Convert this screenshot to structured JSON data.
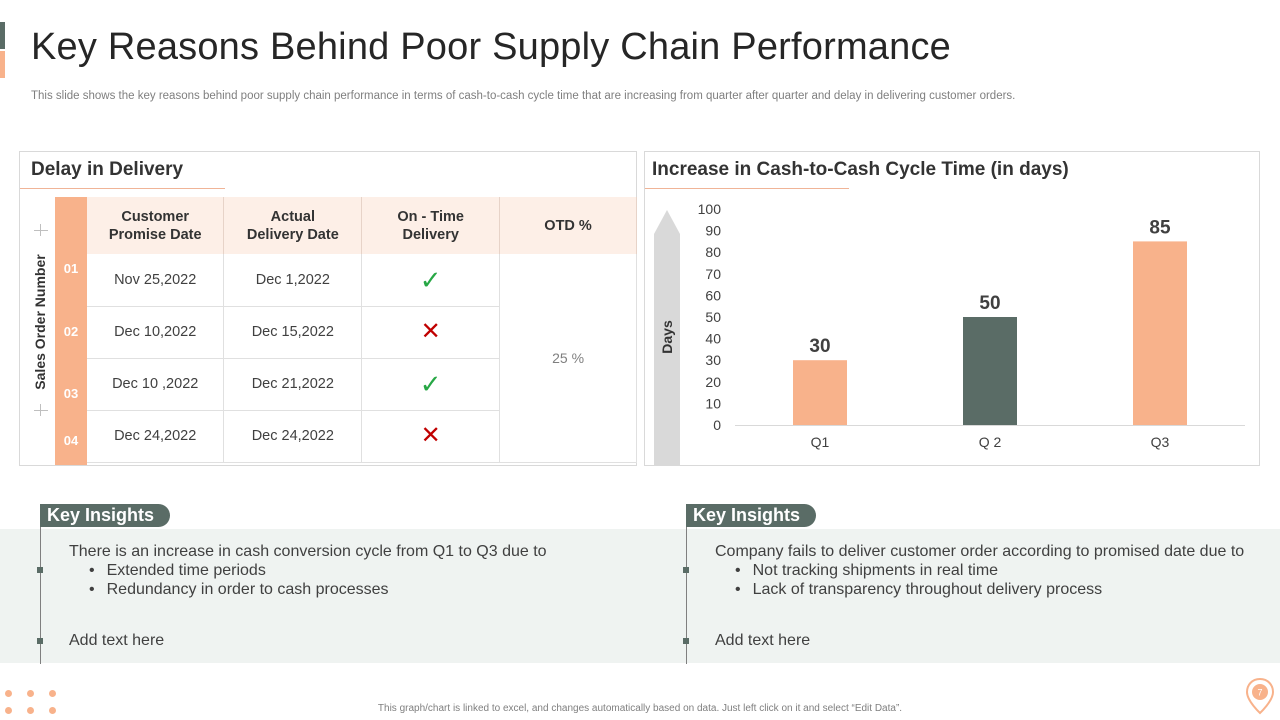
{
  "title": "Key Reasons Behind Poor Supply Chain Performance",
  "subtitle": "This slide shows the key reasons behind poor supply chain performance in terms of cash-to-cash cycle time that are increasing from quarter after quarter and delay in delivering customer orders.",
  "delay_panel": {
    "title": "Delay in Delivery",
    "axis_label": "Sales Order Number",
    "headers": [
      "Customer Promise Date",
      "Actual Delivery Date",
      "On - Time Delivery",
      "OTD %"
    ],
    "header_lines": [
      [
        "Customer",
        "Promise Date"
      ],
      [
        "Actual",
        "Delivery Date"
      ],
      [
        "On - Time",
        "Delivery"
      ],
      [
        "OTD %"
      ]
    ],
    "rows": [
      {
        "num": "01",
        "promise": "Nov 25,2022",
        "actual": "Dec 1,2022",
        "on_time": "check-icon",
        "status": "✓"
      },
      {
        "num": "02",
        "promise": "Dec 10,2022",
        "actual": "Dec 15,2022",
        "on_time": "cross-icon",
        "status": "✕"
      },
      {
        "num": "03",
        "promise": "Dec 10 ,2022",
        "actual": "Dec 21,2022",
        "on_time": "check-icon",
        "status": "✓"
      },
      {
        "num": "04",
        "promise": "Dec 24,2022",
        "actual": "Dec 24,2022",
        "on_time": "cross-icon",
        "status": "✕"
      }
    ],
    "otd_value": "25 %"
  },
  "chart_panel": {
    "title": "Increase in Cash-to-Cash Cycle Time (in days)",
    "y_axis_label": "Days"
  },
  "chart_data": {
    "type": "bar",
    "title": "Increase in Cash-to-Cash Cycle Time (in days)",
    "categories": [
      "Q1",
      "Q 2",
      "Q3"
    ],
    "values": [
      30,
      50,
      85
    ],
    "bar_colors": [
      "#f8b28b",
      "#5a6c66",
      "#f8b28b"
    ],
    "xlabel": "",
    "ylabel": "Days",
    "ylim": [
      0,
      100
    ],
    "yticks": [
      0,
      10,
      20,
      30,
      40,
      50,
      60,
      70,
      80,
      90,
      100
    ],
    "grid": false
  },
  "insights": [
    {
      "tag": "Key Insights",
      "lead": "There is an increase in cash conversion cycle from Q1 to Q3 due to",
      "bullets": [
        "Extended time periods",
        "Redundancy  in order to cash processes"
      ],
      "add_text": "Add text here"
    },
    {
      "tag": "Key Insights",
      "lead": "Company fails to deliver customer order according to promised date due to",
      "bullets": [
        "Not tracking shipments in real time",
        "Lack of transparency  throughout  delivery process"
      ],
      "add_text": "Add text here"
    }
  ],
  "footer": "This graph/chart is linked to excel, and changes automatically based on data. Just left click on it and select “Edit Data”.",
  "page_number": "7",
  "colors": {
    "accent_peach": "#f8b28b",
    "accent_slate": "#5a6c66",
    "header_bg": "#fdefe7",
    "check": "#27a745",
    "cross": "#c00000"
  }
}
